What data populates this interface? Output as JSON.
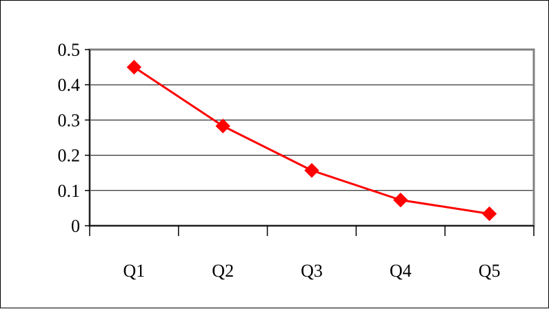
{
  "chart_data": {
    "type": "line",
    "categories": [
      "Q1",
      "Q2",
      "Q3",
      "Q4",
      "Q5"
    ],
    "series": [
      {
        "values": [
          0.45,
          0.283,
          0.157,
          0.073,
          0.034
        ]
      }
    ],
    "ylim": [
      0,
      0.5
    ],
    "yticks": [
      "0",
      "0.1",
      "0.2",
      "0.3",
      "0.4",
      "0.5"
    ],
    "grid": true,
    "colors": {
      "series": "#ff0000",
      "plot_border": "#808080",
      "grid": "#000000"
    }
  }
}
